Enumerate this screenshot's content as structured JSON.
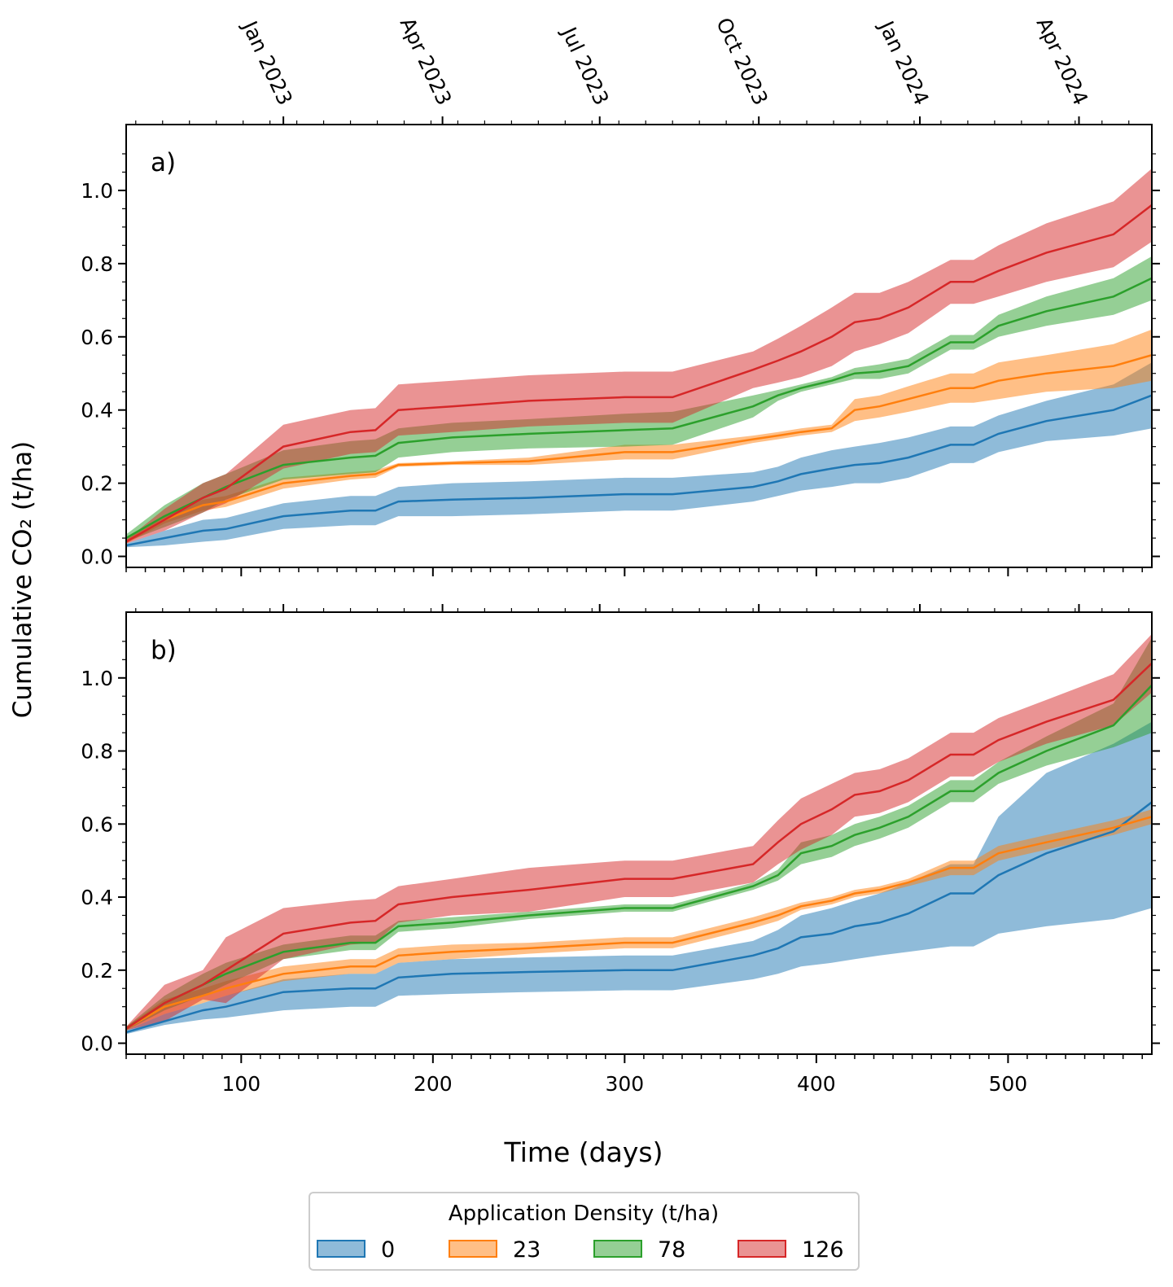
{
  "chart_data": [
    {
      "type": "line",
      "panel_label": "a)",
      "x": [
        40,
        60,
        80,
        92,
        122,
        157,
        170,
        182,
        210,
        250,
        300,
        325,
        367,
        380,
        392,
        408,
        420,
        433,
        448,
        470,
        482,
        495,
        520,
        555,
        575
      ],
      "xlim": [
        40,
        575
      ],
      "ylim": [
        -0.03,
        1.18
      ],
      "series": [
        {
          "name": "0",
          "color": "#1f77b4",
          "mean": [
            0.03,
            0.05,
            0.07,
            0.075,
            0.11,
            0.125,
            0.125,
            0.15,
            0.155,
            0.16,
            0.17,
            0.17,
            0.19,
            0.205,
            0.225,
            0.24,
            0.25,
            0.255,
            0.27,
            0.305,
            0.305,
            0.335,
            0.37,
            0.4,
            0.44
          ],
          "err": [
            0.005,
            0.02,
            0.03,
            0.03,
            0.035,
            0.04,
            0.04,
            0.04,
            0.045,
            0.045,
            0.045,
            0.045,
            0.04,
            0.04,
            0.045,
            0.05,
            0.05,
            0.055,
            0.055,
            0.05,
            0.05,
            0.05,
            0.055,
            0.07,
            0.09
          ]
        },
        {
          "name": "23",
          "color": "#ff7f0e",
          "mean": [
            0.04,
            0.1,
            0.14,
            0.15,
            0.2,
            0.22,
            0.225,
            0.25,
            0.255,
            0.26,
            0.285,
            0.285,
            0.32,
            0.33,
            0.34,
            0.35,
            0.4,
            0.41,
            0.43,
            0.46,
            0.46,
            0.48,
            0.5,
            0.52,
            0.55
          ],
          "err": [
            0.005,
            0.01,
            0.015,
            0.015,
            0.015,
            0.01,
            0.01,
            0.005,
            0.005,
            0.01,
            0.02,
            0.02,
            0.01,
            0.01,
            0.01,
            0.01,
            0.03,
            0.03,
            0.035,
            0.04,
            0.04,
            0.05,
            0.05,
            0.06,
            0.07
          ]
        },
        {
          "name": "78",
          "color": "#2ca02c",
          "mean": [
            0.05,
            0.11,
            0.16,
            0.19,
            0.25,
            0.27,
            0.275,
            0.31,
            0.325,
            0.335,
            0.345,
            0.35,
            0.41,
            0.44,
            0.46,
            0.48,
            0.5,
            0.505,
            0.52,
            0.585,
            0.585,
            0.63,
            0.67,
            0.71,
            0.76
          ],
          "err": [
            0.01,
            0.03,
            0.04,
            0.035,
            0.04,
            0.045,
            0.045,
            0.04,
            0.04,
            0.04,
            0.045,
            0.045,
            0.03,
            0.015,
            0.01,
            0.01,
            0.015,
            0.02,
            0.02,
            0.02,
            0.02,
            0.03,
            0.04,
            0.05,
            0.06
          ]
        },
        {
          "name": "126",
          "color": "#d62728",
          "mean": [
            0.04,
            0.1,
            0.16,
            0.185,
            0.3,
            0.34,
            0.345,
            0.4,
            0.41,
            0.425,
            0.435,
            0.435,
            0.51,
            0.535,
            0.56,
            0.6,
            0.64,
            0.65,
            0.68,
            0.75,
            0.75,
            0.78,
            0.83,
            0.88,
            0.96
          ],
          "err": [
            0.005,
            0.03,
            0.04,
            0.04,
            0.06,
            0.06,
            0.06,
            0.07,
            0.07,
            0.07,
            0.07,
            0.07,
            0.05,
            0.06,
            0.07,
            0.08,
            0.08,
            0.07,
            0.07,
            0.06,
            0.06,
            0.07,
            0.08,
            0.09,
            0.1
          ]
        }
      ]
    },
    {
      "type": "line",
      "panel_label": "b)",
      "x": [
        40,
        60,
        80,
        92,
        122,
        157,
        170,
        182,
        210,
        250,
        300,
        325,
        367,
        380,
        392,
        408,
        420,
        433,
        448,
        470,
        482,
        495,
        520,
        555,
        575
      ],
      "xlim": [
        40,
        575
      ],
      "ylim": [
        -0.03,
        1.18
      ],
      "series": [
        {
          "name": "0",
          "color": "#1f77b4",
          "mean": [
            0.03,
            0.06,
            0.09,
            0.1,
            0.14,
            0.15,
            0.15,
            0.18,
            0.19,
            0.195,
            0.2,
            0.2,
            0.24,
            0.26,
            0.29,
            0.3,
            0.32,
            0.33,
            0.355,
            0.41,
            0.41,
            0.46,
            0.52,
            0.58,
            0.66
          ],
          "lower": [
            0.025,
            0.05,
            0.065,
            0.07,
            0.09,
            0.1,
            0.1,
            0.13,
            0.135,
            0.14,
            0.145,
            0.145,
            0.175,
            0.19,
            0.21,
            0.22,
            0.23,
            0.24,
            0.25,
            0.265,
            0.265,
            0.3,
            0.32,
            0.34,
            0.37
          ],
          "upper": [
            0.035,
            0.08,
            0.11,
            0.13,
            0.175,
            0.19,
            0.19,
            0.22,
            0.23,
            0.235,
            0.24,
            0.24,
            0.28,
            0.31,
            0.35,
            0.37,
            0.39,
            0.41,
            0.44,
            0.49,
            0.49,
            0.62,
            0.74,
            0.82,
            0.88
          ]
        },
        {
          "name": "23",
          "color": "#ff7f0e",
          "mean": [
            0.04,
            0.1,
            0.13,
            0.15,
            0.19,
            0.21,
            0.21,
            0.24,
            0.25,
            0.26,
            0.275,
            0.275,
            0.33,
            0.35,
            0.375,
            0.39,
            0.41,
            0.42,
            0.44,
            0.48,
            0.48,
            0.52,
            0.55,
            0.59,
            0.62
          ],
          "err": [
            0.005,
            0.02,
            0.02,
            0.02,
            0.02,
            0.02,
            0.02,
            0.02,
            0.02,
            0.015,
            0.015,
            0.015,
            0.015,
            0.015,
            0.01,
            0.01,
            0.01,
            0.01,
            0.01,
            0.02,
            0.02,
            0.02,
            0.02,
            0.02,
            0.02
          ]
        },
        {
          "name": "78",
          "color": "#2ca02c",
          "mean": [
            0.04,
            0.11,
            0.16,
            0.19,
            0.25,
            0.275,
            0.275,
            0.32,
            0.33,
            0.35,
            0.37,
            0.37,
            0.43,
            0.46,
            0.52,
            0.54,
            0.57,
            0.59,
            0.62,
            0.69,
            0.69,
            0.74,
            0.8,
            0.87,
            0.98
          ],
          "err": [
            0.005,
            0.02,
            0.03,
            0.03,
            0.02,
            0.02,
            0.02,
            0.015,
            0.015,
            0.01,
            0.01,
            0.01,
            0.01,
            0.015,
            0.03,
            0.03,
            0.03,
            0.03,
            0.03,
            0.03,
            0.03,
            0.03,
            0.04,
            0.06,
            0.13
          ]
        },
        {
          "name": "126",
          "color": "#d62728",
          "mean": [
            0.04,
            0.11,
            0.16,
            0.2,
            0.3,
            0.33,
            0.335,
            0.38,
            0.4,
            0.42,
            0.45,
            0.45,
            0.49,
            0.55,
            0.6,
            0.64,
            0.68,
            0.69,
            0.72,
            0.79,
            0.79,
            0.83,
            0.88,
            0.94,
            1.04
          ],
          "err": [
            0.005,
            0.05,
            0.04,
            0.09,
            0.07,
            0.06,
            0.06,
            0.05,
            0.05,
            0.06,
            0.05,
            0.05,
            0.05,
            0.06,
            0.07,
            0.07,
            0.06,
            0.06,
            0.06,
            0.06,
            0.06,
            0.06,
            0.06,
            0.07,
            0.08
          ]
        }
      ]
    }
  ],
  "axes": {
    "xlabel": "Time (days)",
    "ylabel": "Cumulative CO₂ (t/ha)",
    "x_ticks": [
      100,
      200,
      300,
      400,
      500
    ],
    "y_ticks": [
      0.0,
      0.2,
      0.4,
      0.6,
      0.8,
      1.0
    ],
    "top_ticks": [
      {
        "label": "Jan 2023",
        "day": 122
      },
      {
        "label": "Apr 2023",
        "day": 205
      },
      {
        "label": "Jul 2023",
        "day": 287
      },
      {
        "label": "Oct 2023",
        "day": 370
      },
      {
        "label": "Jan 2024",
        "day": 454
      },
      {
        "label": "Apr 2024",
        "day": 537
      }
    ]
  },
  "legend": {
    "title": "Application Density (t/ha)",
    "placement": "bottom-center",
    "entries": [
      {
        "label": "0",
        "color": "#1f77b4"
      },
      {
        "label": "23",
        "color": "#ff7f0e"
      },
      {
        "label": "78",
        "color": "#2ca02c"
      },
      {
        "label": "126",
        "color": "#d62728"
      }
    ]
  }
}
